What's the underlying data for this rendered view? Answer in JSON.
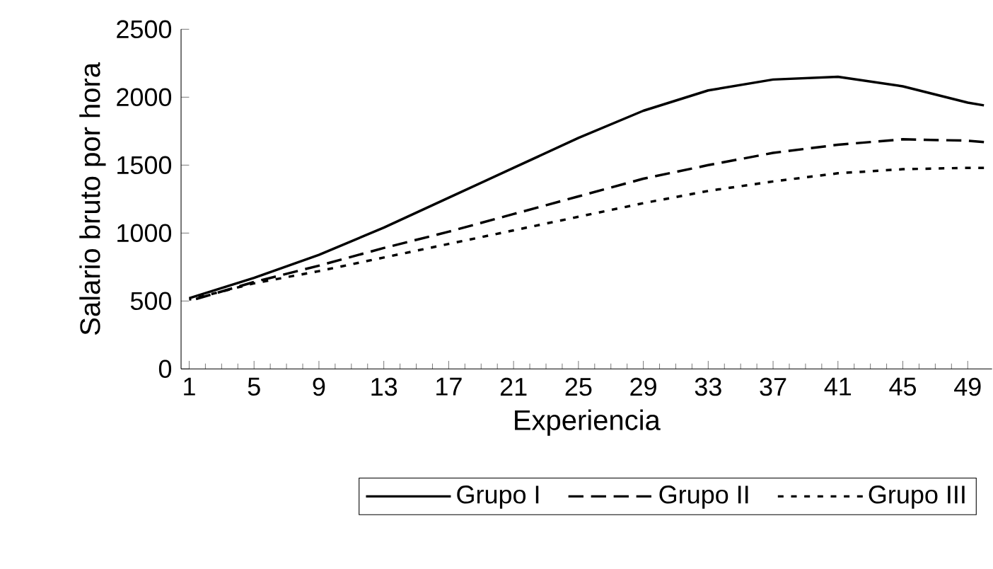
{
  "chart_data": {
    "type": "line",
    "xlabel": "Experiencia",
    "ylabel": "Salario bruto por hora",
    "x": [
      1,
      5,
      9,
      13,
      17,
      21,
      25,
      29,
      33,
      37,
      41,
      45,
      49,
      50
    ],
    "series": [
      {
        "name": "Grupo I",
        "color": "#000000",
        "line_style": "solid",
        "values": [
          520,
          670,
          840,
          1040,
          1260,
          1480,
          1700,
          1900,
          2050,
          2130,
          2150,
          2080,
          1960,
          1940
        ]
      },
      {
        "name": "Grupo II",
        "color": "#000000",
        "line_style": "dashed",
        "values": [
          500,
          640,
          760,
          890,
          1010,
          1140,
          1270,
          1400,
          1500,
          1590,
          1650,
          1690,
          1680,
          1670
        ]
      },
      {
        "name": "Grupo III",
        "color": "#000000",
        "line_style": "dotted",
        "values": [
          510,
          630,
          720,
          820,
          920,
          1020,
          1120,
          1220,
          1310,
          1380,
          1440,
          1470,
          1480,
          1480
        ]
      }
    ],
    "xlim": [
      0.5,
      50.5
    ],
    "xticks": [
      1,
      5,
      9,
      13,
      17,
      21,
      25,
      29,
      33,
      37,
      41,
      45,
      49
    ],
    "ylim": [
      0,
      2500
    ],
    "yticks": [
      0,
      500,
      1000,
      1500,
      2000,
      2500
    ],
    "marker": "none",
    "legend": "bottom"
  }
}
